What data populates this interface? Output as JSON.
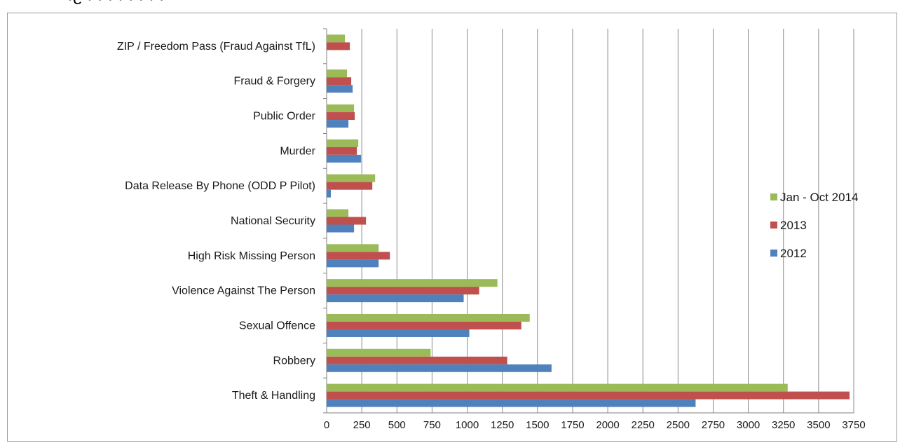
{
  "top_fragment_text": "·e     ·   ·  ·  ·  ·   ·       ·  ·  ",
  "chart_data": {
    "type": "bar",
    "orientation": "horizontal",
    "title": "",
    "xlabel": "",
    "ylabel": "",
    "categories": [
      "ZIP / Freedom Pass (Fraud Against TfL)",
      "Fraud & Forgery",
      "Public Order",
      "Murder",
      "Data Release By Phone (ODD P Pilot)",
      "National Security",
      "High Risk Missing Person",
      "Violence Against The Person",
      "Sexual Offence",
      "Robbery",
      "Theft & Handling"
    ],
    "series": [
      {
        "name": "Jan - Oct 2014",
        "color": "#9BBB59",
        "values": [
          130,
          145,
          195,
          225,
          345,
          155,
          370,
          1215,
          1445,
          740,
          3280
        ]
      },
      {
        "name": "2013",
        "color": "#C0504D",
        "values": [
          165,
          175,
          200,
          215,
          325,
          280,
          450,
          1085,
          1385,
          1285,
          3720
        ]
      },
      {
        "name": "2012",
        "color": "#4F81BD",
        "values": [
          0,
          185,
          155,
          245,
          30,
          195,
          370,
          975,
          1015,
          1600,
          2625
        ]
      }
    ],
    "xlim": [
      0,
      3750
    ],
    "x_ticks": [
      0,
      250,
      500,
      750,
      1000,
      1250,
      1500,
      1750,
      2000,
      2250,
      2500,
      2750,
      3000,
      3250,
      3500,
      3750
    ],
    "grid": "vertical",
    "legend_position": "right"
  }
}
